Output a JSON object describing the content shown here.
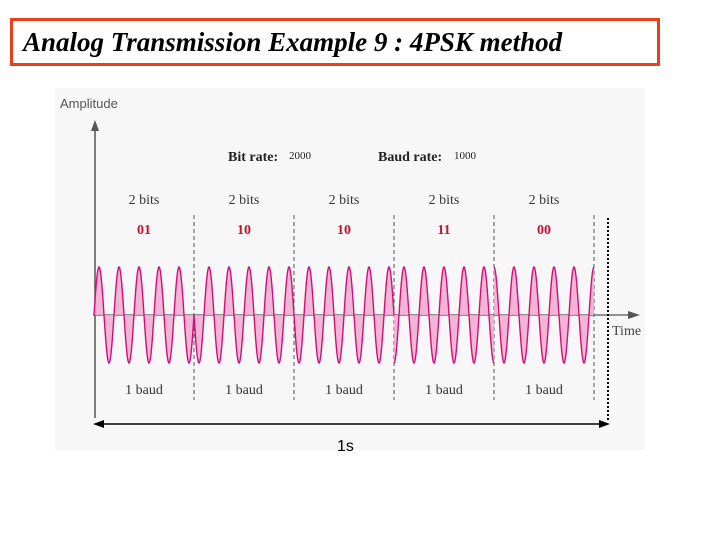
{
  "title": "Analog Transmission Example 9 : 4PSK method",
  "axes": {
    "y_label": "Amplitude",
    "x_label": "Time"
  },
  "rates": {
    "bit_rate_label": "Bit rate:",
    "bit_rate_value": "2000",
    "baud_rate_label": "Baud rate:",
    "baud_rate_value": "1000"
  },
  "symbols": [
    {
      "bits_label": "2 bits",
      "code": "01",
      "baud_label": "1 baud",
      "phase_deg": 0
    },
    {
      "bits_label": "2 bits",
      "code": "10",
      "baud_label": "1 baud",
      "phase_deg": 180
    },
    {
      "bits_label": "2 bits",
      "code": "10",
      "baud_label": "1 baud",
      "phase_deg": 180
    },
    {
      "bits_label": "2 bits",
      "code": "11",
      "baud_label": "1 baud",
      "phase_deg": 270
    },
    {
      "bits_label": "2 bits",
      "code": "00",
      "baud_label": "1 baud",
      "phase_deg": 90
    }
  ],
  "cycles_per_baud": 5,
  "duration_label": "1s",
  "colors": {
    "title_border": "#e8401c",
    "code_text": "#c8102e",
    "wave_stroke": "#d0107a",
    "wave_fill": "#f2a9d0",
    "panel": "#f7f7f7"
  }
}
